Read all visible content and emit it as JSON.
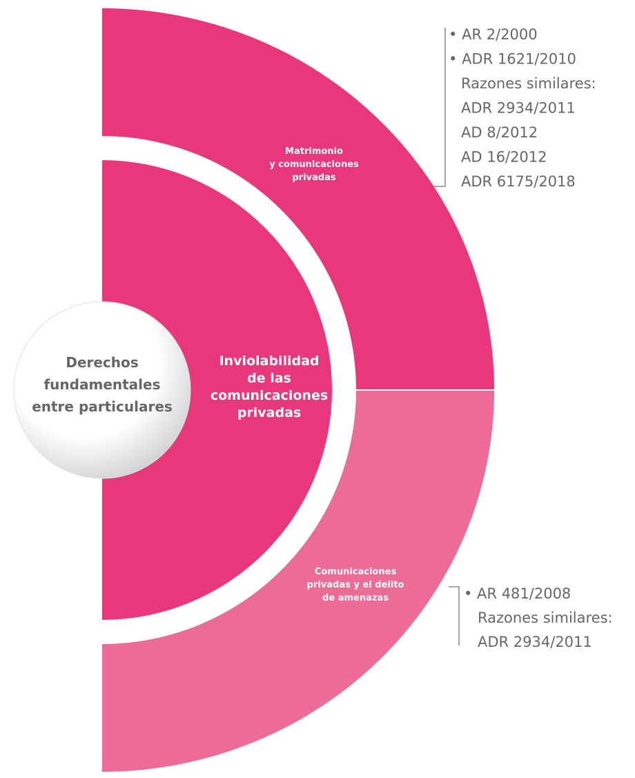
{
  "center": {
    "lines": [
      "Derechos",
      "fundamentales",
      "entre particulares"
    ]
  },
  "main": {
    "lines": [
      "Inviolabilidad",
      "de las",
      "comunicaciones",
      "privadas"
    ]
  },
  "branches": [
    {
      "lines": [
        "Matrimonio",
        "y comunicaciones",
        "privadas"
      ],
      "items": [
        "• AR 2/2000",
        "• ADR 1621/2010",
        "Razones similares:",
        "ADR 2934/2011",
        "AD 8/2012",
        "AD 16/2012",
        "ADR 6175/2018"
      ]
    },
    {
      "lines": [
        "Comunicaciones",
        "privadas y el delito",
        "de amenazas"
      ],
      "items": [
        "• AR 481/2008",
        "Razones similares:",
        "ADR 2934/2011"
      ]
    }
  ]
}
